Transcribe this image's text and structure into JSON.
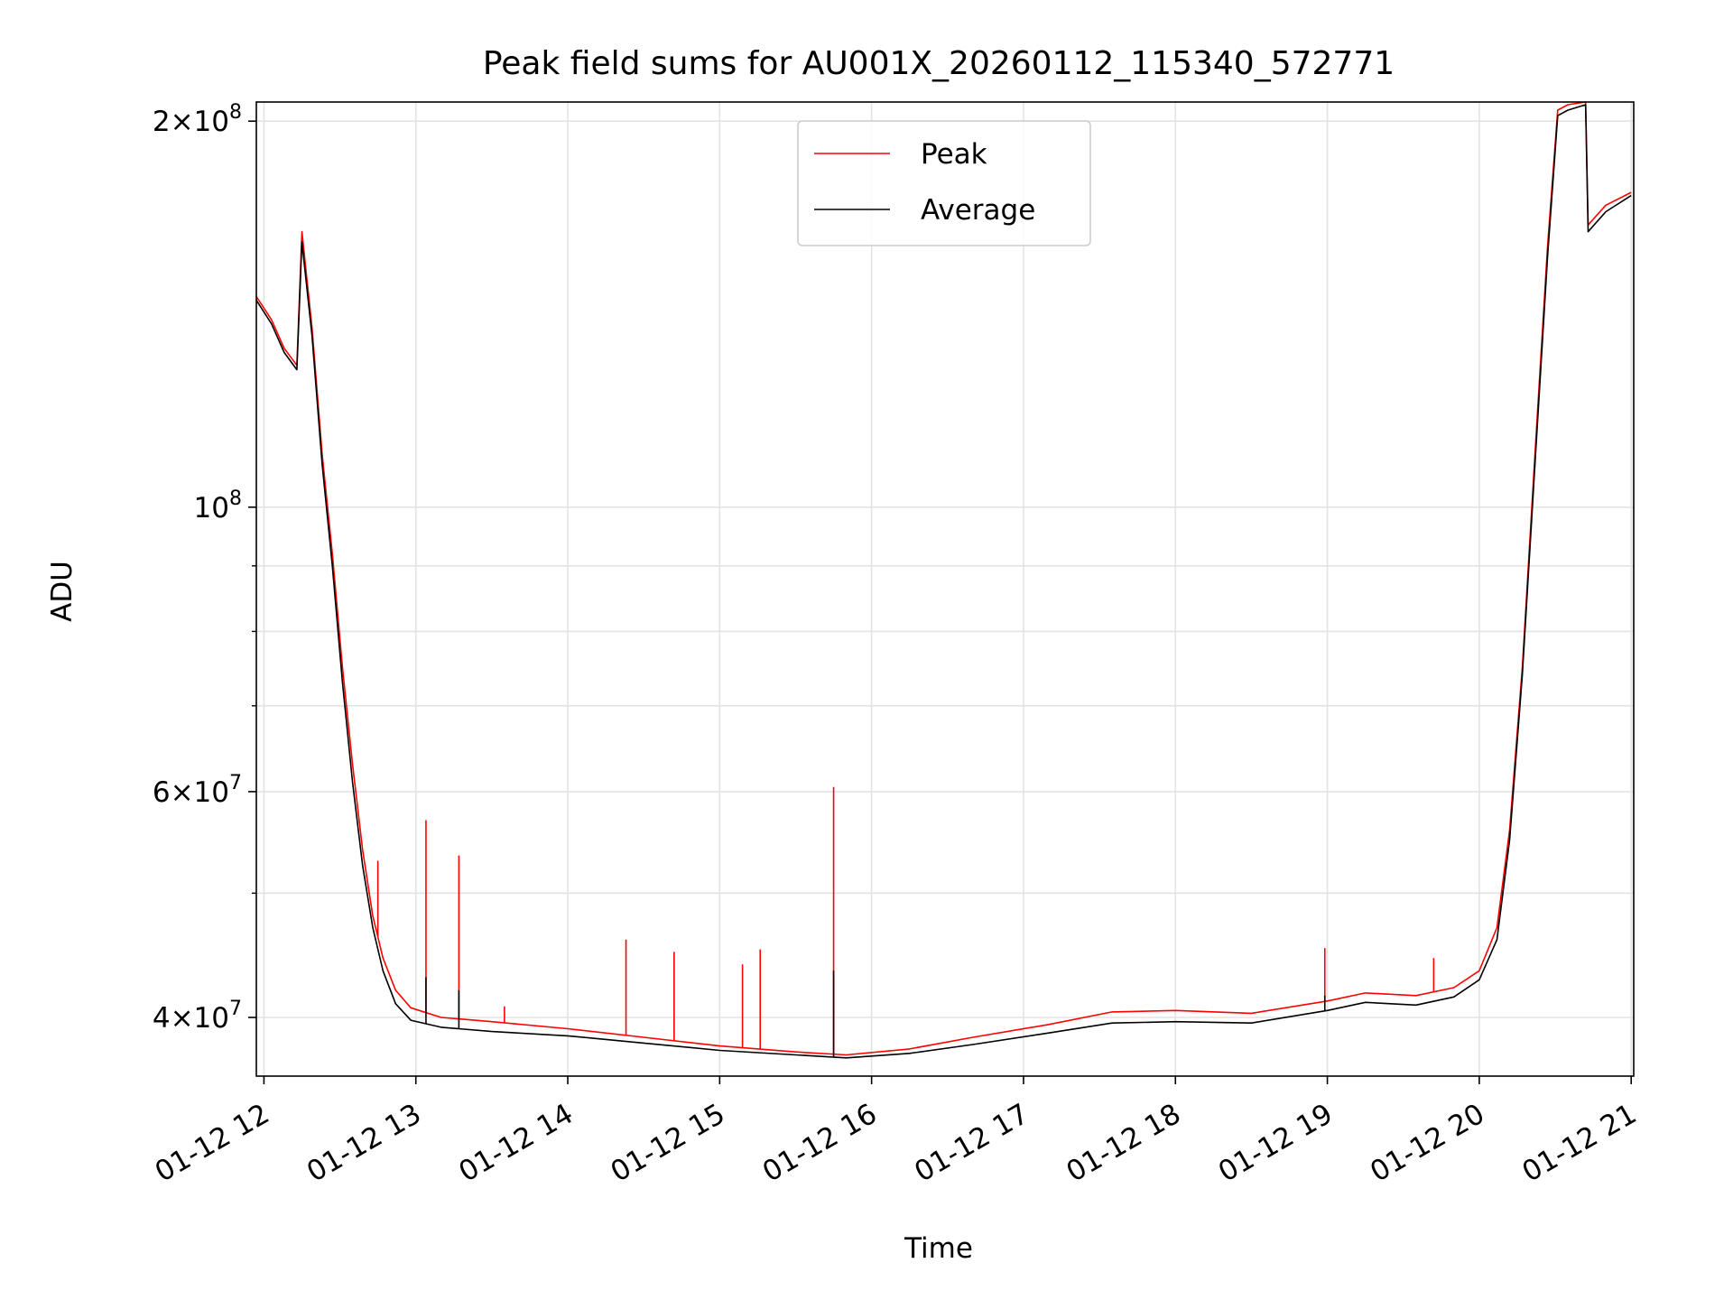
{
  "chart_data": {
    "type": "line",
    "title": "Peak field sums for AU001X_20260112_115340_572771",
    "xlabel": "Time",
    "ylabel": "ADU",
    "yscale": "log",
    "ylim": [
      36000000,
      207000000
    ],
    "xlim": [
      "2026-01-12T11:57",
      "2026-01-12T21:01"
    ],
    "grid": true,
    "legend": {
      "position": "upper center"
    },
    "x_ticks": [
      {
        "value": "2026-01-12T12:00",
        "label": "01-12 12"
      },
      {
        "value": "2026-01-12T13:00",
        "label": "01-12 13"
      },
      {
        "value": "2026-01-12T14:00",
        "label": "01-12 14"
      },
      {
        "value": "2026-01-12T15:00",
        "label": "01-12 15"
      },
      {
        "value": "2026-01-12T16:00",
        "label": "01-12 16"
      },
      {
        "value": "2026-01-12T17:00",
        "label": "01-12 17"
      },
      {
        "value": "2026-01-12T18:00",
        "label": "01-12 18"
      },
      {
        "value": "2026-01-12T19:00",
        "label": "01-12 19"
      },
      {
        "value": "2026-01-12T20:00",
        "label": "01-12 20"
      },
      {
        "value": "2026-01-12T21:00",
        "label": "01-12 21"
      }
    ],
    "y_ticks_major": [
      {
        "value": 40000000,
        "base": "4×10",
        "exp": "7"
      },
      {
        "value": 60000000,
        "base": "6×10",
        "exp": "7"
      },
      {
        "value": 100000000,
        "base": "10",
        "exp": "8"
      },
      {
        "value": 200000000,
        "base": "2×10",
        "exp": "8"
      }
    ],
    "y_ticks_minor": [
      50000000,
      70000000,
      80000000,
      90000000
    ],
    "series": [
      {
        "name": "Peak",
        "color": "#ff0000",
        "points": [
          [
            "2026-01-12T11:57",
            146000000
          ],
          [
            "2026-01-12T11:59",
            144000000
          ],
          [
            "2026-01-12T12:03",
            140000000
          ],
          [
            "2026-01-12T12:08",
            133000000
          ],
          [
            "2026-01-12T12:13",
            129000000
          ],
          [
            "2026-01-12T12:15",
            164000000
          ],
          [
            "2026-01-12T12:19",
            138000000
          ],
          [
            "2026-01-12T12:23",
            110000000
          ],
          [
            "2026-01-12T12:27",
            92000000
          ],
          [
            "2026-01-12T12:31",
            75000000
          ],
          [
            "2026-01-12T12:35",
            63000000
          ],
          [
            "2026-01-12T12:39",
            54000000
          ],
          [
            "2026-01-12T12:43",
            48000000
          ],
          [
            "2026-01-12T12:47",
            44500000
          ],
          [
            "2026-01-12T12:52",
            42000000
          ],
          [
            "2026-01-12T12:58",
            40700000
          ],
          [
            "2026-01-12T13:10",
            40000000
          ],
          [
            "2026-01-12T13:30",
            39700000
          ],
          [
            "2026-01-12T14:00",
            39200000
          ],
          [
            "2026-01-12T14:30",
            38600000
          ],
          [
            "2026-01-12T15:00",
            38000000
          ],
          [
            "2026-01-12T15:30",
            37600000
          ],
          [
            "2026-01-12T15:50",
            37400000
          ],
          [
            "2026-01-12T16:15",
            37800000
          ],
          [
            "2026-01-12T16:40",
            38600000
          ],
          [
            "2026-01-12T17:10",
            39500000
          ],
          [
            "2026-01-12T17:35",
            40400000
          ],
          [
            "2026-01-12T18:00",
            40500000
          ],
          [
            "2026-01-12T18:30",
            40300000
          ],
          [
            "2026-01-12T19:00",
            41200000
          ],
          [
            "2026-01-12T19:15",
            41800000
          ],
          [
            "2026-01-12T19:35",
            41600000
          ],
          [
            "2026-01-12T19:50",
            42200000
          ],
          [
            "2026-01-12T20:00",
            43500000
          ],
          [
            "2026-01-12T20:07",
            47000000
          ],
          [
            "2026-01-12T20:12",
            56000000
          ],
          [
            "2026-01-12T20:17",
            75000000
          ],
          [
            "2026-01-12T20:22",
            110000000
          ],
          [
            "2026-01-12T20:27",
            160000000
          ],
          [
            "2026-01-12T20:31",
            204000000
          ],
          [
            "2026-01-12T20:35",
            206000000
          ],
          [
            "2026-01-12T20:42",
            207000000
          ],
          [
            "2026-01-12T20:43",
            166000000
          ],
          [
            "2026-01-12T20:50",
            172000000
          ],
          [
            "2026-01-12T21:00",
            176000000
          ]
        ],
        "spikes": [
          [
            "2026-01-12T12:45",
            53000000
          ],
          [
            "2026-01-12T13:04",
            57000000
          ],
          [
            "2026-01-12T13:17",
            53500000
          ],
          [
            "2026-01-12T13:35",
            40800000
          ],
          [
            "2026-01-12T14:23",
            46000000
          ],
          [
            "2026-01-12T14:42",
            45000000
          ],
          [
            "2026-01-12T15:09",
            44000000
          ],
          [
            "2026-01-12T15:16",
            45200000
          ],
          [
            "2026-01-12T15:45",
            60500000
          ],
          [
            "2026-01-12T18:59",
            45300000
          ],
          [
            "2026-01-12T19:42",
            44500000
          ]
        ]
      },
      {
        "name": "Average",
        "color": "#000000",
        "points": [
          [
            "2026-01-12T11:57",
            145000000
          ],
          [
            "2026-01-12T11:59",
            143000000
          ],
          [
            "2026-01-12T12:03",
            139000000
          ],
          [
            "2026-01-12T12:08",
            132000000
          ],
          [
            "2026-01-12T12:13",
            128000000
          ],
          [
            "2026-01-12T12:15",
            161000000
          ],
          [
            "2026-01-12T12:19",
            136000000
          ],
          [
            "2026-01-12T12:23",
            108000000
          ],
          [
            "2026-01-12T12:27",
            90000000
          ],
          [
            "2026-01-12T12:31",
            73000000
          ],
          [
            "2026-01-12T12:35",
            61000000
          ],
          [
            "2026-01-12T12:39",
            52500000
          ],
          [
            "2026-01-12T12:43",
            47000000
          ],
          [
            "2026-01-12T12:47",
            43500000
          ],
          [
            "2026-01-12T12:52",
            41000000
          ],
          [
            "2026-01-12T12:58",
            39800000
          ],
          [
            "2026-01-12T13:10",
            39300000
          ],
          [
            "2026-01-12T13:30",
            39000000
          ],
          [
            "2026-01-12T14:00",
            38700000
          ],
          [
            "2026-01-12T14:30",
            38200000
          ],
          [
            "2026-01-12T15:00",
            37700000
          ],
          [
            "2026-01-12T15:30",
            37400000
          ],
          [
            "2026-01-12T15:50",
            37200000
          ],
          [
            "2026-01-12T16:15",
            37500000
          ],
          [
            "2026-01-12T16:40",
            38100000
          ],
          [
            "2026-01-12T17:10",
            38900000
          ],
          [
            "2026-01-12T17:35",
            39600000
          ],
          [
            "2026-01-12T18:00",
            39700000
          ],
          [
            "2026-01-12T18:30",
            39600000
          ],
          [
            "2026-01-12T19:00",
            40500000
          ],
          [
            "2026-01-12T19:15",
            41100000
          ],
          [
            "2026-01-12T19:35",
            40900000
          ],
          [
            "2026-01-12T19:50",
            41500000
          ],
          [
            "2026-01-12T20:00",
            42800000
          ],
          [
            "2026-01-12T20:07",
            46000000
          ],
          [
            "2026-01-12T20:12",
            55000000
          ],
          [
            "2026-01-12T20:17",
            74000000
          ],
          [
            "2026-01-12T20:22",
            108000000
          ],
          [
            "2026-01-12T20:27",
            157000000
          ],
          [
            "2026-01-12T20:31",
            202000000
          ],
          [
            "2026-01-12T20:35",
            204000000
          ],
          [
            "2026-01-12T20:42",
            206000000
          ],
          [
            "2026-01-12T20:43",
            164000000
          ],
          [
            "2026-01-12T20:50",
            170000000
          ],
          [
            "2026-01-12T21:00",
            175000000
          ]
        ],
        "spikes": [
          [
            "2026-01-12T13:04",
            43000000
          ],
          [
            "2026-01-12T13:17",
            42000000
          ],
          [
            "2026-01-12T15:45",
            43500000
          ],
          [
            "2026-01-12T18:59",
            41600000
          ]
        ]
      }
    ]
  }
}
